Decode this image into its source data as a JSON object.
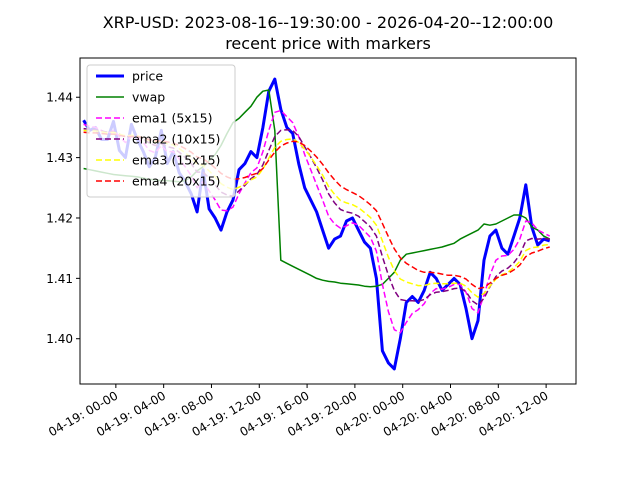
{
  "chart_data": {
    "type": "line",
    "title": "XRP-USD: 2023-08-16--19:30:00 - 2026-04-20--12:00:00",
    "subtitle": "recent price with markers",
    "xlabel": "",
    "ylabel": "",
    "ylim": [
      1.3925,
      1.4465
    ],
    "yticks": [
      1.4,
      1.41,
      1.42,
      1.43,
      1.44
    ],
    "ytick_labels": [
      "1.40",
      "1.41",
      "1.42",
      "1.43",
      "1.44"
    ],
    "xlim": [
      -3.0,
      38.5
    ],
    "xticks": [
      0,
      4,
      8,
      12,
      16,
      20,
      24,
      28,
      32,
      36
    ],
    "xtick_labels": [
      "04-19: 00-00",
      "04-19: 04-00",
      "04-19: 08-00",
      "04-19: 12-00",
      "04-19: 16-00",
      "04-19: 20-00",
      "04-20: 00-00",
      "04-20: 04-00",
      "04-20: 08-00",
      "04-20: 12-00"
    ],
    "grid": false,
    "legend_position": "upper left",
    "x": [
      -2.7,
      -2.2,
      -1.7,
      -1.2,
      -0.7,
      -0.2,
      0.3,
      0.8,
      1.3,
      1.8,
      2.3,
      2.8,
      3.3,
      3.8,
      4.3,
      4.8,
      5.3,
      5.8,
      6.3,
      6.8,
      7.3,
      7.8,
      8.3,
      8.8,
      9.3,
      9.8,
      10.3,
      10.8,
      11.3,
      11.8,
      12.3,
      12.8,
      13.3,
      13.8,
      14.3,
      14.8,
      15.3,
      15.8,
      16.3,
      16.8,
      17.3,
      17.8,
      18.3,
      18.8,
      19.3,
      19.8,
      20.3,
      20.8,
      21.3,
      21.8,
      22.3,
      22.8,
      23.3,
      23.8,
      24.3,
      24.8,
      25.3,
      25.8,
      26.3,
      26.8,
      27.3,
      27.8,
      28.3,
      28.8,
      29.3,
      29.8,
      30.3,
      30.8,
      31.3,
      31.8,
      32.3,
      32.8,
      33.3,
      33.8,
      34.3,
      34.8,
      35.3,
      35.8,
      36.3
    ],
    "series": [
      {
        "name": "price",
        "color": "#0000ff",
        "dash": "solid",
        "width": 3,
        "values": [
          1.4362,
          1.4345,
          1.435,
          1.433,
          1.433,
          1.436,
          1.4312,
          1.43,
          1.4355,
          1.433,
          1.431,
          1.4285,
          1.43,
          1.4345,
          1.429,
          1.431,
          1.4275,
          1.426,
          1.424,
          1.421,
          1.428,
          1.4215,
          1.42,
          1.418,
          1.421,
          1.423,
          1.428,
          1.429,
          1.431,
          1.43,
          1.435,
          1.441,
          1.443,
          1.438,
          1.435,
          1.434,
          1.429,
          1.425,
          1.423,
          1.421,
          1.418,
          1.415,
          1.4165,
          1.417,
          1.4195,
          1.42,
          1.418,
          1.416,
          1.415,
          1.41,
          1.398,
          1.396,
          1.395,
          1.4,
          1.406,
          1.407,
          1.406,
          1.408,
          1.411,
          1.41,
          1.408,
          1.409,
          1.41,
          1.409,
          1.405,
          1.4,
          1.403,
          1.413,
          1.417,
          1.418,
          1.415,
          1.414,
          1.417,
          1.42,
          1.4255,
          1.4185,
          1.4155,
          1.4165,
          1.4162
        ]
      },
      {
        "name": "vwap",
        "color": "#008000",
        "dash": "solid",
        "width": 1.5,
        "values": [
          1.4282,
          1.428,
          1.4278,
          1.4276,
          1.4274,
          1.4272,
          1.4271,
          1.427,
          1.4269,
          1.4268,
          1.4266,
          1.4264,
          1.4263,
          1.4262,
          1.4262,
          1.4261,
          1.426,
          1.4262,
          1.4268,
          1.4278,
          1.4285,
          1.4295,
          1.4305,
          1.432,
          1.434,
          1.4358,
          1.4365,
          1.4375,
          1.4385,
          1.44,
          1.441,
          1.4412,
          1.4345,
          1.413,
          1.4125,
          1.412,
          1.4115,
          1.411,
          1.4105,
          1.41,
          1.4097,
          1.4095,
          1.4094,
          1.4092,
          1.4091,
          1.409,
          1.4089,
          1.4087,
          1.4086,
          1.4087,
          1.409,
          1.41,
          1.411,
          1.413,
          1.414,
          1.4142,
          1.4144,
          1.4146,
          1.4148,
          1.415,
          1.4152,
          1.4155,
          1.4158,
          1.4165,
          1.417,
          1.4175,
          1.418,
          1.419,
          1.4188,
          1.419,
          1.4195,
          1.42,
          1.4205,
          1.4205,
          1.42,
          1.4185,
          1.418,
          1.417,
          1.4165
        ]
      },
      {
        "name": "ema1 (5x15)",
        "color": "#ff00ff",
        "dash": "dash",
        "width": 1.5,
        "values": [
          1.4355,
          1.4352,
          1.435,
          1.4345,
          1.434,
          1.4345,
          1.4335,
          1.4325,
          1.4335,
          1.4332,
          1.4325,
          1.4312,
          1.4308,
          1.432,
          1.431,
          1.431,
          1.4298,
          1.4285,
          1.427,
          1.425,
          1.426,
          1.4245,
          1.423,
          1.4213,
          1.4212,
          1.4218,
          1.424,
          1.4258,
          1.4275,
          1.4283,
          1.431,
          1.4345,
          1.4375,
          1.4378,
          1.4368,
          1.4358,
          1.4335,
          1.4305,
          1.428,
          1.4255,
          1.423,
          1.4203,
          1.419,
          1.4183,
          1.4187,
          1.4192,
          1.4188,
          1.4178,
          1.4168,
          1.4145,
          1.409,
          1.4045,
          1.4015,
          1.401,
          1.4027,
          1.4042,
          1.4048,
          1.4058,
          1.4075,
          1.4083,
          1.4082,
          1.4085,
          1.409,
          1.409,
          1.4077,
          1.405,
          1.4043,
          1.4072,
          1.4105,
          1.413,
          1.4137,
          1.4138,
          1.4148,
          1.4165,
          1.4195,
          1.4192,
          1.418,
          1.4175,
          1.417
        ]
      },
      {
        "name": "ema2 (10x15)",
        "color": "#800080",
        "dash": "dash",
        "width": 1.5,
        "values": [
          1.4348,
          1.4347,
          1.4346,
          1.4344,
          1.4342,
          1.4343,
          1.4339,
          1.4334,
          1.4336,
          1.4335,
          1.4331,
          1.4324,
          1.432,
          1.4323,
          1.4318,
          1.4316,
          1.4309,
          1.43,
          1.429,
          1.4276,
          1.4276,
          1.4266,
          1.4255,
          1.4243,
          1.4238,
          1.4236,
          1.4245,
          1.4254,
          1.4265,
          1.4272,
          1.4288,
          1.4312,
          1.4335,
          1.4345,
          1.4346,
          1.4345,
          1.4335,
          1.4318,
          1.4301,
          1.4283,
          1.4263,
          1.424,
          1.4225,
          1.4214,
          1.421,
          1.4208,
          1.4203,
          1.4194,
          1.4185,
          1.417,
          1.4136,
          1.4105,
          1.408,
          1.4065,
          1.4063,
          1.4063,
          1.4062,
          1.4065,
          1.4073,
          1.4077,
          1.4078,
          1.408,
          1.4083,
          1.4084,
          1.4078,
          1.4063,
          1.4056,
          1.4067,
          1.4086,
          1.4103,
          1.4112,
          1.4117,
          1.4126,
          1.4139,
          1.4162,
          1.4166,
          1.4165,
          1.4166,
          1.4165
        ]
      },
      {
        "name": "ema3 (15x15)",
        "color": "#ffff00",
        "dash": "dash",
        "width": 1.5,
        "values": [
          1.4345,
          1.4344,
          1.4344,
          1.4343,
          1.4341,
          1.4342,
          1.4339,
          1.4336,
          1.4337,
          1.4336,
          1.4333,
          1.4328,
          1.4325,
          1.4327,
          1.4323,
          1.4321,
          1.4315,
          1.4308,
          1.43,
          1.4289,
          1.4287,
          1.4278,
          1.4268,
          1.4257,
          1.4251,
          1.4247,
          1.4251,
          1.4256,
          1.4263,
          1.4268,
          1.4281,
          1.4299,
          1.4317,
          1.4327,
          1.433,
          1.4331,
          1.4325,
          1.4314,
          1.4301,
          1.4287,
          1.4271,
          1.4252,
          1.4239,
          1.4229,
          1.4225,
          1.4222,
          1.4217,
          1.4209,
          1.4201,
          1.4188,
          1.4162,
          1.4135,
          1.4113,
          1.4099,
          1.4094,
          1.4091,
          1.4088,
          1.4088,
          1.4091,
          1.4092,
          1.4091,
          1.4091,
          1.4092,
          1.4092,
          1.4087,
          1.4076,
          1.4069,
          1.4075,
          1.4087,
          1.4099,
          1.4106,
          1.411,
          1.4118,
          1.4128,
          1.4146,
          1.4151,
          1.4152,
          1.4155,
          1.4156
        ]
      },
      {
        "name": "ema4 (20x15)",
        "color": "#ff0000",
        "dash": "dash",
        "width": 1.5,
        "values": [
          1.4342,
          1.4341,
          1.4341,
          1.434,
          1.4339,
          1.4339,
          1.4337,
          1.4335,
          1.4335,
          1.4335,
          1.4333,
          1.433,
          1.4328,
          1.4328,
          1.4326,
          1.4324,
          1.432,
          1.4315,
          1.4309,
          1.4301,
          1.4298,
          1.4291,
          1.4283,
          1.4274,
          1.4268,
          1.4264,
          1.4265,
          1.4267,
          1.4271,
          1.4274,
          1.4282,
          1.4296,
          1.4309,
          1.4319,
          1.4324,
          1.4327,
          1.4326,
          1.432,
          1.4311,
          1.4301,
          1.4289,
          1.4275,
          1.4263,
          1.4253,
          1.4247,
          1.4242,
          1.4237,
          1.423,
          1.4222,
          1.4212,
          1.4191,
          1.4169,
          1.4149,
          1.4134,
          1.4125,
          1.4119,
          1.4113,
          1.411,
          1.411,
          1.4109,
          1.4107,
          1.4105,
          1.4105,
          1.4103,
          1.4099,
          1.409,
          1.4083,
          1.4085,
          1.4092,
          1.41,
          1.4105,
          1.4108,
          1.4114,
          1.4122,
          1.4136,
          1.4142,
          1.4145,
          1.4149,
          1.4152
        ]
      }
    ]
  }
}
